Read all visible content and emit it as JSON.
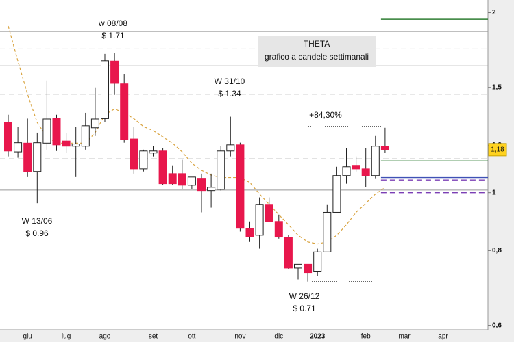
{
  "chart_data": {
    "type": "candlestick",
    "title": "THETA",
    "subtitle": "grafico a candele settimanali",
    "log_scale": true,
    "ylim": [
      0.59,
      2.1
    ],
    "yticks": [
      {
        "value": 0.6,
        "label": "0,6"
      },
      {
        "value": 0.8,
        "label": "0,8"
      },
      1,
      {
        "value": 1.2,
        "label": "1,2"
      },
      {
        "value": 1.5,
        "label": "1,5"
      },
      2
    ],
    "categories": [
      null,
      null,
      "giu",
      null,
      null,
      null,
      "lug",
      null,
      null,
      null,
      "ago",
      null,
      null,
      null,
      null,
      "set",
      null,
      null,
      null,
      "ott",
      null,
      null,
      null,
      null,
      "nov",
      null,
      null,
      null,
      "dic",
      null,
      null,
      null,
      "2023",
      null,
      null,
      null,
      null,
      "feb",
      null,
      null,
      null,
      "mar",
      null,
      null,
      null,
      "apr",
      null,
      null,
      null,
      null
    ],
    "open": [
      1.31,
      1.17,
      1.21,
      1.085,
      1.21,
      1.33,
      1.22,
      1.196,
      1.196,
      1.284,
      1.33,
      1.66,
      1.52,
      1.23,
      1.096,
      1.165,
      1.174,
      1.076,
      1.076,
      1.029,
      1.057,
      1.008,
      1.013,
      1.174,
      1.202,
      0.872,
      0.849,
      0.956,
      0.895,
      0.843,
      0.748,
      0.759,
      0.739,
      0.796,
      0.927,
      1.068,
      1.111,
      1.096,
      1.068,
      1.196,
      null,
      null,
      null,
      null,
      null,
      null,
      null,
      null,
      null,
      null
    ],
    "high": [
      1.35,
      1.29,
      1.33,
      1.26,
      1.54,
      1.35,
      1.26,
      1.29,
      1.36,
      1.5,
      1.706,
      1.71,
      1.58,
      1.29,
      1.18,
      1.196,
      1.187,
      1.111,
      1.135,
      1.062,
      1.076,
      1.076,
      1.196,
      1.34,
      1.212,
      0.895,
      0.982,
      0.982,
      0.919,
      0.849,
      0.759,
      0.759,
      0.806,
      0.956,
      1.105,
      1.187,
      1.15,
      1.187,
      1.244,
      1.284,
      null,
      null,
      null,
      null,
      null,
      null,
      null,
      null,
      null,
      null
    ],
    "low": [
      1.15,
      1.144,
      1.062,
      0.96,
      1.18,
      1.174,
      1.165,
      1.062,
      1.18,
      1.244,
      1.311,
      1.457,
      1.212,
      1.076,
      1.085,
      1.15,
      1.029,
      1.029,
      1.013,
      1.013,
      0.927,
      0.944,
      1.008,
      1.15,
      0.861,
      0.827,
      0.806,
      0.895,
      0.838,
      0.745,
      0.716,
      0.71,
      0.726,
      0.796,
      0.927,
      1.035,
      1.085,
      1.021,
      1.057,
      1.165,
      null,
      null,
      null,
      null,
      null,
      null,
      null,
      null,
      null,
      null
    ],
    "close": [
      1.174,
      1.212,
      1.085,
      1.212,
      1.328,
      1.202,
      1.196,
      1.206,
      1.294,
      1.328,
      1.662,
      1.523,
      1.228,
      1.096,
      1.174,
      1.174,
      1.035,
      1.035,
      1.029,
      1.062,
      1.008,
      1.021,
      1.174,
      1.202,
      0.872,
      0.845,
      0.956,
      0.895,
      0.843,
      0.748,
      0.759,
      0.735,
      0.796,
      0.927,
      1.068,
      1.105,
      1.096,
      1.068,
      1.196,
      1.18,
      null,
      null,
      null,
      null,
      null,
      null,
      null,
      null,
      null,
      null
    ],
    "up_color": "#ffffff",
    "down_color": "#e8174c",
    "moving_average": {
      "color": "#d9a441",
      "values": [
        1.9,
        1.66,
        1.46,
        1.31,
        1.24,
        1.21,
        1.21,
        1.21,
        1.21,
        1.26,
        1.35,
        1.38,
        1.36,
        1.33,
        1.29,
        1.27,
        1.24,
        1.21,
        1.17,
        1.12,
        1.09,
        1.07,
        1.06,
        1.06,
        1.06,
        1.04,
        0.995,
        0.956,
        0.919,
        0.884,
        0.849,
        0.827,
        0.821,
        0.827,
        0.849,
        0.884,
        0.927,
        0.96,
        0.995,
        1.02,
        null,
        null,
        null,
        null,
        null,
        null,
        null,
        null,
        null,
        null
      ]
    },
    "levels": [
      {
        "value": 1.86,
        "color": "#999999",
        "dash": false,
        "partial": false
      },
      {
        "value": 1.74,
        "color": "#d0d0d0",
        "dash": true,
        "partial": false
      },
      {
        "value": 1.63,
        "color": "#999999",
        "dash": false,
        "partial": false
      },
      {
        "value": 1.46,
        "color": "#d0d0d0",
        "dash": true,
        "partial": false
      },
      {
        "value": 1.14,
        "color": "#d0d0d0",
        "dash": true,
        "partial": false
      },
      {
        "value": 1.01,
        "color": "#999999",
        "dash": false,
        "partial": false
      },
      {
        "value": 1.95,
        "color": "#2e7d32",
        "dash": false,
        "partial": true
      },
      {
        "value": 1.13,
        "color": "#2e7d32",
        "dash": false,
        "partial": true
      },
      {
        "value": 1.06,
        "color": "#3f51b5",
        "dash": false,
        "partial": true
      },
      {
        "value": 1.05,
        "color": "#7b3fb5",
        "dash": true,
        "partial": true
      },
      {
        "value": 1.0,
        "color": "#7b3fb5",
        "dash": true,
        "partial": true
      }
    ],
    "annotations": [
      {
        "lines": [
          "w 08/08",
          "$ 1.71"
        ]
      },
      {
        "lines": [
          "W 31/10",
          "$ 1.34"
        ]
      },
      {
        "lines": [
          "W 13/06",
          "$ 0.96"
        ]
      },
      {
        "lines": [
          "W 26/12",
          "$ 0.71"
        ]
      },
      {
        "lines": [
          "+84,30%"
        ],
        "color": "#1a33cc"
      }
    ],
    "last_price": {
      "value": 1.18,
      "label": "1,18"
    }
  }
}
